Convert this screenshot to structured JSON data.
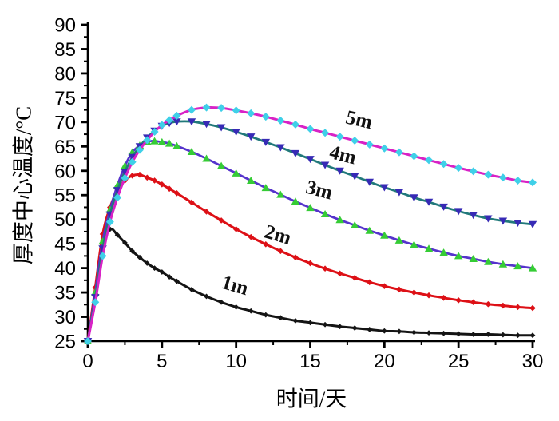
{
  "chart_data": {
    "type": "line",
    "title": "",
    "xlabel": "时间/天",
    "ylabel": "厚度中心温度/°C",
    "xlim": [
      0,
      30
    ],
    "ylim": [
      25,
      90
    ],
    "x_major_ticks": [
      0,
      5,
      10,
      15,
      20,
      25,
      30
    ],
    "y_major_ticks": [
      25,
      30,
      35,
      40,
      45,
      50,
      55,
      60,
      65,
      70,
      75,
      80,
      85,
      90
    ],
    "minor_tick_step": 2.5,
    "grid": false,
    "legend_position": "inline-labels-on-curves",
    "background_color": "#ffffff",
    "axis_color": "#000000",
    "series": [
      {
        "name": "1m",
        "line_color": "#141414",
        "marker": "diamond",
        "marker_color": "#141414",
        "marker_size": 3.4,
        "line_width": 3,
        "label": {
          "text": "1m",
          "x": 9.8,
          "y": 35.2,
          "rotation": 16
        },
        "points": [
          [
            0,
            25
          ],
          [
            0.5,
            35
          ],
          [
            1,
            44.5
          ],
          [
            1.5,
            48
          ],
          [
            2,
            46.8
          ],
          [
            2.5,
            45.2
          ],
          [
            3,
            43.5
          ],
          [
            3.5,
            42.2
          ],
          [
            4,
            41
          ],
          [
            4.5,
            40
          ],
          [
            5,
            39.2
          ],
          [
            5.5,
            38.2
          ],
          [
            6,
            37.3
          ],
          [
            7,
            35.6
          ],
          [
            8,
            34.2
          ],
          [
            9,
            33
          ],
          [
            10,
            32
          ],
          [
            11,
            31.2
          ],
          [
            12,
            30.4
          ],
          [
            13,
            29.8
          ],
          [
            14,
            29.2
          ],
          [
            15,
            28.8
          ],
          [
            16,
            28.4
          ],
          [
            17,
            28
          ],
          [
            18,
            27.7
          ],
          [
            19,
            27.4
          ],
          [
            20,
            27.1
          ],
          [
            21,
            27
          ],
          [
            22,
            26.8
          ],
          [
            23,
            26.7
          ],
          [
            24,
            26.6
          ],
          [
            25,
            26.5
          ],
          [
            26,
            26.4
          ],
          [
            27,
            26.4
          ],
          [
            28,
            26.3
          ],
          [
            29,
            26.2
          ],
          [
            30,
            26.2
          ]
        ]
      },
      {
        "name": "2m",
        "line_color": "#dd1016",
        "marker": "diamond",
        "marker_color": "#dd1016",
        "marker_size": 3.8,
        "line_width": 3,
        "label": {
          "text": "2m",
          "x": 12.7,
          "y": 45.6,
          "rotation": 16
        },
        "points": [
          [
            0,
            25
          ],
          [
            0.5,
            36
          ],
          [
            1,
            47
          ],
          [
            1.5,
            52.5
          ],
          [
            2,
            56
          ],
          [
            2.5,
            58
          ],
          [
            3,
            59
          ],
          [
            3.5,
            59.2
          ],
          [
            4,
            58.6
          ],
          [
            4.5,
            58
          ],
          [
            5,
            57.2
          ],
          [
            5.5,
            56.3
          ],
          [
            6,
            55.4
          ],
          [
            7,
            53.5
          ],
          [
            8,
            51.6
          ],
          [
            9,
            49.8
          ],
          [
            10,
            48
          ],
          [
            11,
            46.4
          ],
          [
            12,
            44.9
          ],
          [
            13,
            43.5
          ],
          [
            14,
            42.2
          ],
          [
            15,
            41
          ],
          [
            16,
            39.9
          ],
          [
            17,
            38.9
          ],
          [
            18,
            38
          ],
          [
            19,
            37.1
          ],
          [
            20,
            36.3
          ],
          [
            21,
            35.6
          ],
          [
            22,
            35
          ],
          [
            23,
            34.4
          ],
          [
            24,
            33.9
          ],
          [
            25,
            33.4
          ],
          [
            26,
            33
          ],
          [
            27,
            32.6
          ],
          [
            28,
            32.3
          ],
          [
            29,
            32
          ],
          [
            30,
            31.8
          ]
        ]
      },
      {
        "name": "3m",
        "line_color": "#5633cc",
        "marker": "triangle-up",
        "marker_color": "#35cc35",
        "marker_size": 5,
        "line_width": 2.8,
        "label": {
          "text": "3m",
          "x": 15.5,
          "y": 54.8,
          "rotation": 15
        },
        "points": [
          [
            0,
            25
          ],
          [
            0.5,
            35
          ],
          [
            1,
            45.5
          ],
          [
            1.5,
            52
          ],
          [
            2,
            57
          ],
          [
            2.5,
            61
          ],
          [
            3,
            63.8
          ],
          [
            3.5,
            65.2
          ],
          [
            4,
            66
          ],
          [
            4.5,
            66.1
          ],
          [
            5,
            65.9
          ],
          [
            5.5,
            65.6
          ],
          [
            6,
            65.1
          ],
          [
            7,
            63.9
          ],
          [
            8,
            62.5
          ],
          [
            9,
            61
          ],
          [
            10,
            59.5
          ],
          [
            11,
            58
          ],
          [
            12,
            56.5
          ],
          [
            13,
            55.1
          ],
          [
            14,
            53.7
          ],
          [
            15,
            52.4
          ],
          [
            16,
            51.1
          ],
          [
            17,
            49.9
          ],
          [
            18,
            48.8
          ],
          [
            19,
            47.7
          ],
          [
            20,
            46.7
          ],
          [
            21,
            45.7
          ],
          [
            22,
            44.8
          ],
          [
            23,
            44
          ],
          [
            24,
            43.2
          ],
          [
            25,
            42.5
          ],
          [
            26,
            41.9
          ],
          [
            27,
            41.3
          ],
          [
            28,
            40.8
          ],
          [
            29,
            40.4
          ],
          [
            30,
            40
          ]
        ]
      },
      {
        "name": "4m",
        "line_color": "#21797a",
        "marker": "triangle-down",
        "marker_color": "#372ab5",
        "marker_size": 5,
        "line_width": 2.8,
        "label": {
          "text": "4m",
          "x": 17.1,
          "y": 62.0,
          "rotation": 14
        },
        "points": [
          [
            0,
            25
          ],
          [
            0.5,
            34
          ],
          [
            1,
            44
          ],
          [
            1.5,
            51
          ],
          [
            2,
            56
          ],
          [
            2.5,
            59.8
          ],
          [
            3,
            62.8
          ],
          [
            3.5,
            65
          ],
          [
            4,
            66.8
          ],
          [
            4.5,
            68.2
          ],
          [
            5,
            69.2
          ],
          [
            5.5,
            69.8
          ],
          [
            6,
            70.1
          ],
          [
            7,
            70.1
          ],
          [
            8,
            69.6
          ],
          [
            9,
            68.9
          ],
          [
            10,
            68
          ],
          [
            11,
            67
          ],
          [
            12,
            65.9
          ],
          [
            13,
            64.8
          ],
          [
            14,
            63.6
          ],
          [
            15,
            62.4
          ],
          [
            16,
            61.2
          ],
          [
            17,
            60
          ],
          [
            18,
            58.9
          ],
          [
            19,
            57.7
          ],
          [
            20,
            56.6
          ],
          [
            21,
            55.6
          ],
          [
            22,
            54.5
          ],
          [
            23,
            53.6
          ],
          [
            24,
            52.6
          ],
          [
            25,
            51.7
          ],
          [
            26,
            50.9
          ],
          [
            27,
            50.2
          ],
          [
            28,
            49.7
          ],
          [
            29,
            49.3
          ],
          [
            30,
            49
          ]
        ]
      },
      {
        "name": "5m",
        "line_color": "#d822c6",
        "marker": "diamond",
        "marker_color": "#3fd0e8",
        "marker_size": 5,
        "line_width": 3,
        "label": {
          "text": "5m",
          "x": 18.2,
          "y": 69.2,
          "rotation": 13
        },
        "points": [
          [
            0,
            25
          ],
          [
            0.5,
            33
          ],
          [
            1,
            42.5
          ],
          [
            1.5,
            49.5
          ],
          [
            2,
            54.5
          ],
          [
            2.5,
            58.5
          ],
          [
            3,
            61.8
          ],
          [
            3.5,
            64.3
          ],
          [
            4,
            66.3
          ],
          [
            4.5,
            68
          ],
          [
            5,
            69.4
          ],
          [
            5.5,
            70.4
          ],
          [
            6,
            71.3
          ],
          [
            7,
            72.5
          ],
          [
            8,
            73
          ],
          [
            9,
            72.9
          ],
          [
            10,
            72.4
          ],
          [
            11,
            71.8
          ],
          [
            12,
            71.1
          ],
          [
            13,
            70.3
          ],
          [
            14,
            69.5
          ],
          [
            15,
            68.6
          ],
          [
            16,
            67.8
          ],
          [
            17,
            67
          ],
          [
            18,
            66.2
          ],
          [
            19,
            65.4
          ],
          [
            20,
            64.6
          ],
          [
            21,
            63.8
          ],
          [
            22,
            63
          ],
          [
            23,
            62.2
          ],
          [
            24,
            61.4
          ],
          [
            25,
            60.6
          ],
          [
            26,
            59.9
          ],
          [
            27,
            59.2
          ],
          [
            28,
            58.6
          ],
          [
            29,
            58
          ],
          [
            30,
            57.6
          ]
        ]
      }
    ]
  }
}
